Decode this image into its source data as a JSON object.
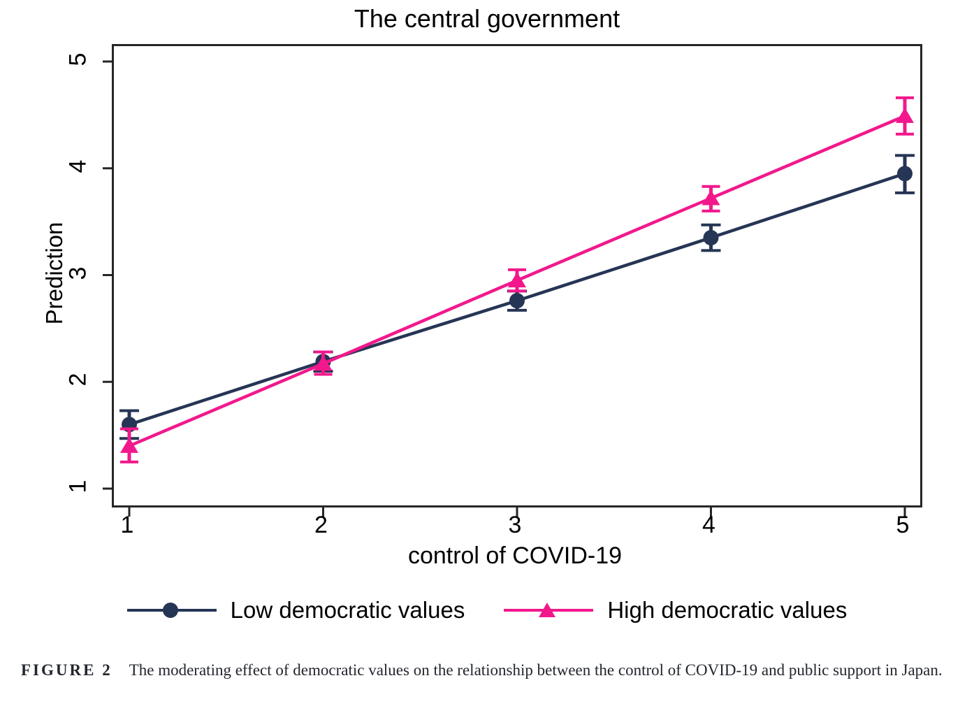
{
  "figure": {
    "title": "The central government",
    "caption_label": "FIGURE 2",
    "caption_text": "The moderating effect of democratic values on the relationship between the control of COVID-19 and public support in Japan."
  },
  "colors": {
    "navy": "#263555",
    "pink": "#f2188c",
    "axis": "#262626",
    "text": "#000000",
    "caption": "#22262d"
  },
  "chart_data": {
    "type": "line",
    "title": "The central government",
    "xlabel": "control of COVID-19",
    "ylabel": "Prediction",
    "x": [
      1,
      2,
      3,
      4,
      5
    ],
    "xticks": [
      1,
      2,
      3,
      4,
      5
    ],
    "yticks": [
      1,
      2,
      3,
      4,
      5
    ],
    "xlim": [
      0.92,
      5.08
    ],
    "ylim": [
      0.85,
      5.14
    ],
    "grid": false,
    "frame": true,
    "legend_position": "bottom",
    "error_bars": true,
    "series": [
      {
        "name": "Low democratic values",
        "color": "#263555",
        "marker": "circle",
        "values": [
          1.6,
          2.19,
          2.76,
          3.35,
          3.95
        ],
        "ci_low": [
          1.47,
          2.1,
          2.67,
          3.23,
          3.77
        ],
        "ci_high": [
          1.73,
          2.28,
          2.85,
          3.47,
          4.12
        ]
      },
      {
        "name": "High democratic values",
        "color": "#f2188c",
        "marker": "triangle",
        "values": [
          1.4,
          2.17,
          2.95,
          3.72,
          4.49
        ],
        "ci_low": [
          1.25,
          2.07,
          2.85,
          3.6,
          4.32
        ],
        "ci_high": [
          1.56,
          2.28,
          3.05,
          3.83,
          4.66
        ]
      }
    ]
  }
}
